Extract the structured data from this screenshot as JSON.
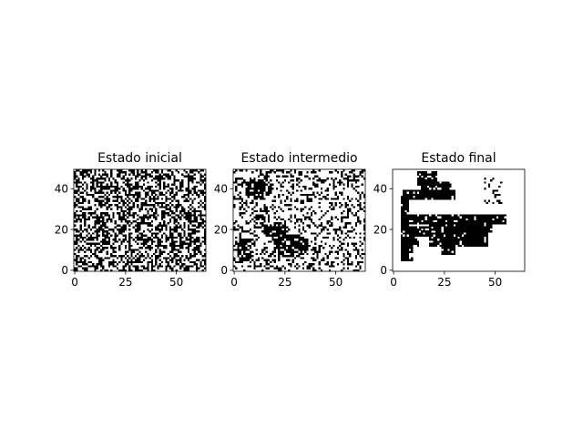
{
  "chart_data": [
    {
      "type": "heatmap",
      "title": "Estado inicial",
      "state": "initial",
      "grid_cols": 65,
      "grid_rows": 50,
      "colormap": "binary",
      "colors": {
        "on": "#000000",
        "off": "#ffffff"
      },
      "black_fraction": 0.5,
      "x_ticks": [
        0,
        25,
        50
      ],
      "y_ticks": [
        0,
        20,
        40
      ],
      "xlim": [
        -0.5,
        64.5
      ],
      "ylim": [
        -0.5,
        49.5
      ],
      "origin": "lower"
    },
    {
      "type": "heatmap",
      "title": "Estado intermedio",
      "state": "intermediate",
      "grid_cols": 65,
      "grid_rows": 50,
      "colormap": "binary",
      "colors": {
        "on": "#000000",
        "off": "#ffffff"
      },
      "black_fraction": 0.3,
      "x_ticks": [
        0,
        25,
        50
      ],
      "y_ticks": [
        0,
        20,
        40
      ],
      "xlim": [
        -0.5,
        64.5
      ],
      "ylim": [
        -0.5,
        49.5
      ],
      "origin": "lower"
    },
    {
      "type": "heatmap",
      "title": "Estado final",
      "state": "final",
      "grid_cols": 65,
      "grid_rows": 50,
      "colormap": "binary",
      "colors": {
        "on": "#000000",
        "off": "#ffffff"
      },
      "x_ticks": [
        0,
        25,
        50
      ],
      "y_ticks": [
        0,
        20,
        40
      ],
      "xlim": [
        -0.5,
        64.5
      ],
      "ylim": [
        -0.5,
        49.5
      ],
      "origin": "lower",
      "black_regions": [
        {
          "x": [
            4,
            7
          ],
          "y": [
            5,
            36
          ]
        },
        {
          "x": [
            4,
            9
          ],
          "y": [
            5,
            12
          ]
        },
        {
          "x": [
            6,
            12
          ],
          "y": [
            12,
            16
          ]
        },
        {
          "x": [
            5,
            55
          ],
          "y": [
            23,
            27
          ]
        },
        {
          "x": [
            5,
            30
          ],
          "y": [
            35,
            39
          ]
        },
        {
          "x": [
            12,
            21
          ],
          "y": [
            42,
            48
          ]
        },
        {
          "x": [
            14,
            28
          ],
          "y": [
            36,
            43
          ]
        },
        {
          "x": [
            18,
            44
          ],
          "y": [
            12,
            23
          ]
        },
        {
          "x": [
            8,
            18
          ],
          "y": [
            17,
            21
          ]
        },
        {
          "x": [
            24,
            30
          ],
          "y": [
            8,
            13
          ]
        },
        {
          "x": [
            36,
            46
          ],
          "y": [
            12,
            20
          ]
        },
        {
          "x": [
            42,
            48
          ],
          "y": [
            19,
            26
          ]
        }
      ],
      "sparse_cluster": {
        "x": [
          44,
          55
        ],
        "y": [
          33,
          45
        ]
      }
    }
  ]
}
